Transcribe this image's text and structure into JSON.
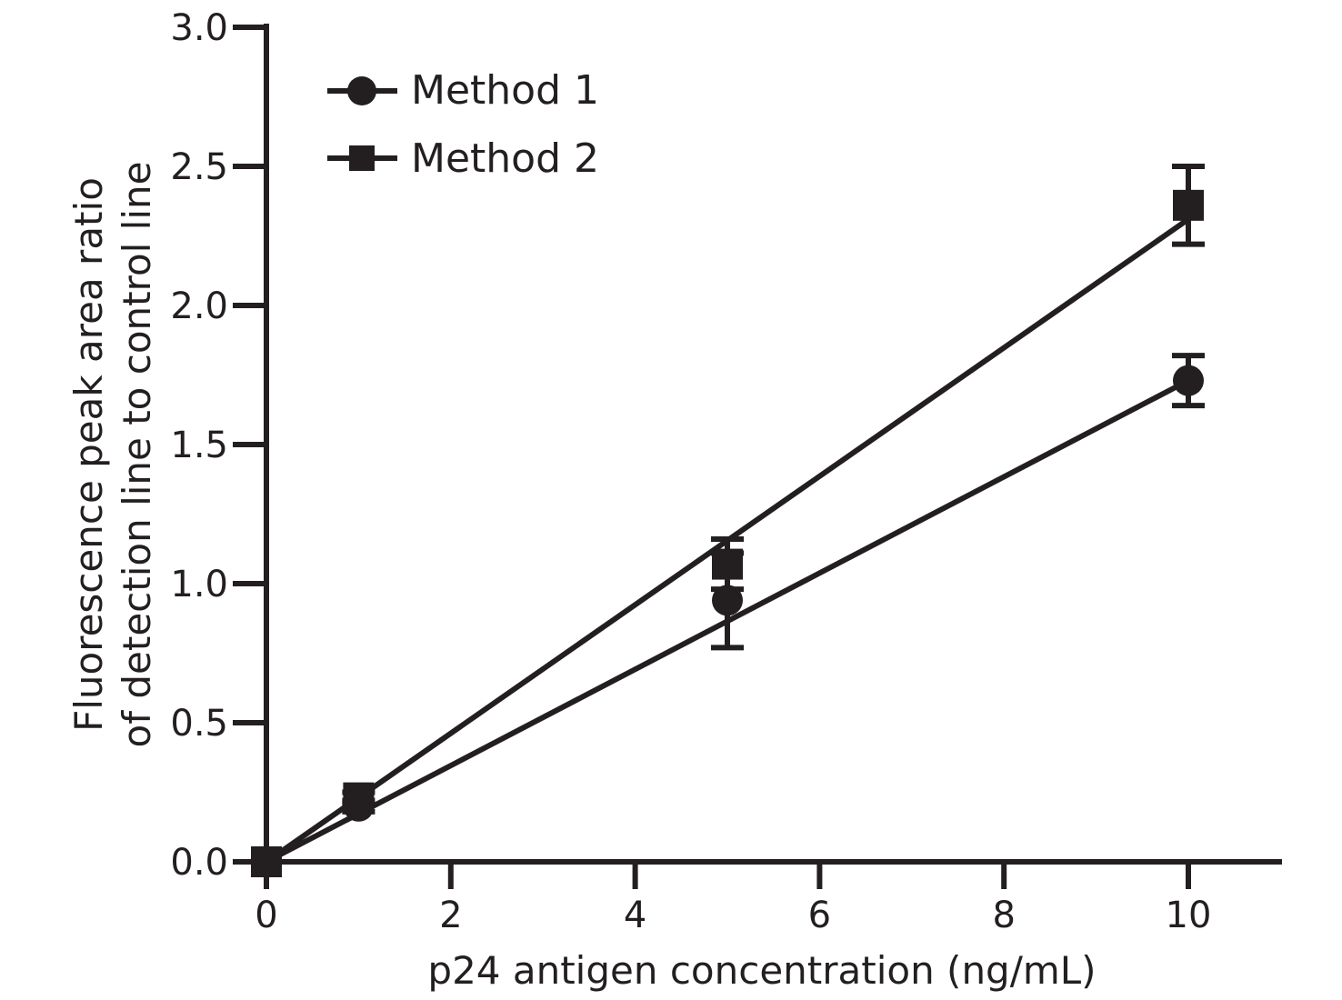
{
  "chart_data": {
    "type": "line",
    "xlabel": "p24 antigen concentration (ng/mL)",
    "ylabel_lines": [
      "Fluorescence peak area ratio",
      "of detection line to control line"
    ],
    "xlim": [
      0,
      11
    ],
    "ylim": [
      0,
      3.0
    ],
    "x_ticks": [
      0,
      2,
      4,
      6,
      8,
      10
    ],
    "y_ticks": [
      0.0,
      0.5,
      1.0,
      1.5,
      2.0,
      2.5,
      3.0
    ],
    "x_tick_labels": [
      "0",
      "2",
      "4",
      "6",
      "8",
      "10"
    ],
    "y_tick_labels": [
      "0.0",
      "0.5",
      "1.0",
      "1.5",
      "2.0",
      "2.5",
      "3.0"
    ],
    "grid": false,
    "legend_position": "top-left",
    "line_color": "#231f20",
    "series": [
      {
        "name": "Method 1",
        "marker": "circle",
        "x": [
          0,
          1,
          5,
          10
        ],
        "y": [
          0.0,
          0.2,
          0.94,
          1.73
        ],
        "err": [
          0.0,
          0.02,
          0.17,
          0.09
        ],
        "fit": [
          [
            0,
            0.0
          ],
          [
            10,
            1.73
          ]
        ]
      },
      {
        "name": "Method 2",
        "marker": "square",
        "x": [
          0,
          1,
          5,
          10
        ],
        "y": [
          0.0,
          0.23,
          1.07,
          2.36
        ],
        "err": [
          0.0,
          0.02,
          0.09,
          0.14
        ],
        "fit": [
          [
            0,
            0.0
          ],
          [
            10,
            2.31
          ]
        ]
      }
    ]
  }
}
